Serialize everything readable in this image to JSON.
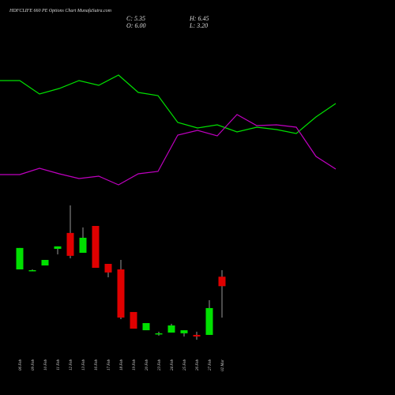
{
  "chart_data": [
    {
      "type": "line",
      "ylim": [
        0,
        250
      ],
      "series": [
        {
          "color": "#00e000",
          "values": [
            148,
            148,
            131,
            138,
            148,
            142,
            155,
            133,
            129,
            95,
            88,
            92,
            83,
            89,
            86,
            81,
            102,
            119
          ]
        },
        {
          "color": "#c000c0",
          "values": [
            29,
            29,
            37,
            30,
            24,
            27,
            16,
            30,
            33,
            79,
            85,
            78,
            105,
            91,
            92,
            89,
            52,
            36
          ]
        }
      ]
    },
    {
      "type": "candlestick",
      "title": "HDFCLIFE 660 PE Options Chart MunafaSutra.com",
      "info": [
        "C: 5.35",
        "H: 6.45",
        "O: 6.00",
        "L: 3.20"
      ],
      "categories": [
        "06 Feb",
        "09 Feb",
        "10 Feb",
        "11 Feb",
        "12 Feb",
        "13 Feb",
        "16 Feb",
        "17 Feb",
        "18 Feb",
        "19 Feb",
        "20 Feb",
        "23 Feb",
        "24 Feb",
        "25 Feb",
        "26 Feb",
        "27 Feb",
        "02 Mar"
      ],
      "open": [
        6.5,
        6.45,
        6.77,
        7.91,
        9.0,
        7.64,
        9.48,
        6.88,
        6.5,
        3.58,
        2.33,
        2.12,
        2.17,
        2.12,
        2.01,
        2.01,
        6.0
      ],
      "high": [
        7.97,
        6.5,
        7.15,
        8.08,
        10.89,
        9.38,
        9.48,
        6.88,
        7.15,
        3.58,
        2.82,
        2.23,
        2.77,
        2.33,
        2.23,
        4.39,
        6.45
      ],
      "low": [
        6.5,
        6.4,
        6.77,
        7.53,
        7.26,
        7.64,
        6.61,
        5.96,
        3.09,
        2.44,
        2.33,
        1.96,
        2.17,
        1.9,
        1.68,
        2.01,
        3.2
      ],
      "close": [
        7.97,
        6.45,
        7.15,
        8.08,
        7.43,
        8.67,
        6.61,
        6.29,
        3.2,
        2.44,
        2.82,
        2.12,
        2.66,
        2.33,
        1.9,
        3.85,
        5.35
      ],
      "ylim": [
        1.14,
        11.43
      ],
      "up_color": "#00e000",
      "down_color": "#e00000",
      "wick_color": "#999999"
    }
  ]
}
